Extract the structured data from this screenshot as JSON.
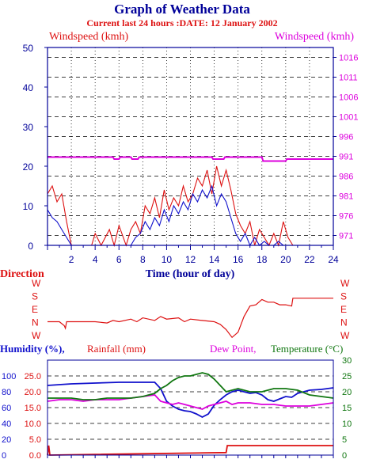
{
  "header": {
    "title": "Graph of Weather Data",
    "subtitle": "Current last 24 hours :DATE: 12 January 2002"
  },
  "colors": {
    "red": "#dd1111",
    "blue": "#1111cc",
    "magenta": "#dd00dd",
    "green": "#117711",
    "axis": "#000099",
    "grid": "#000000"
  },
  "chart_data": [
    {
      "type": "line",
      "name": "wind",
      "left_axis_label": "Windspeed (kmh)",
      "right_axis_label": "Windspeed (kmh)",
      "xlabel": "Time (hour of day)",
      "xlim": [
        0,
        24
      ],
      "x_ticks": [
        "2",
        "4",
        "6",
        "8",
        "10",
        "12",
        "14",
        "16",
        "18",
        "20",
        "22",
        "24"
      ],
      "ylim_left": [
        0,
        50
      ],
      "y_ticks_left": [
        "0",
        "10",
        "20",
        "30",
        "40",
        "50"
      ],
      "ylim_right": [
        968.5,
        1018.5
      ],
      "y_ticks_right": [
        "971",
        "976",
        "981",
        "986",
        "991",
        "996",
        "1001",
        "1006",
        "1011",
        "1016"
      ],
      "grid": "dashed horizontal",
      "series": [
        {
          "color": "red",
          "x": [
            0,
            0.4,
            0.8,
            1.2,
            1.6,
            2.0,
            3.7,
            4.0,
            4.5,
            5.2,
            5.6,
            6.0,
            6.6,
            7.0,
            7.4,
            7.8,
            8.2,
            8.6,
            9.0,
            9.4,
            9.8,
            10.2,
            10.6,
            11.0,
            11.4,
            11.8,
            12.2,
            12.6,
            13.0,
            13.4,
            13.8,
            14.2,
            14.6,
            15.0,
            15.4,
            15.8,
            16.2,
            16.6,
            17.0,
            17.4,
            17.8,
            18.2,
            18.6,
            19.0,
            19.4,
            19.8,
            20.2,
            20.6
          ],
          "values": [
            13,
            15,
            11,
            13,
            6,
            0,
            0,
            3,
            0,
            4,
            0,
            5,
            0,
            4,
            6,
            3,
            10,
            8,
            12,
            7,
            14,
            9,
            12,
            10,
            15,
            11,
            13,
            17,
            15,
            19,
            13,
            20,
            15,
            19,
            14,
            8,
            5,
            3,
            6,
            0,
            4,
            2,
            0,
            3,
            0,
            6,
            2,
            0
          ]
        },
        {
          "color": "blue",
          "x": [
            0,
            0.4,
            0.8,
            1.2,
            1.6,
            2.0,
            7.0,
            7.4,
            7.8,
            8.2,
            8.6,
            9.0,
            9.4,
            9.8,
            10.2,
            10.6,
            11.0,
            11.4,
            11.8,
            12.2,
            12.6,
            13.0,
            13.4,
            13.8,
            14.2,
            14.6,
            15.0,
            15.4,
            15.8,
            16.2,
            16.6,
            17.0,
            17.4,
            17.8,
            18.2,
            18.6,
            19.0,
            19.4,
            19.8,
            20.2
          ],
          "values": [
            9,
            7,
            6,
            4,
            2,
            0,
            0,
            2,
            3,
            6,
            4,
            7,
            5,
            9,
            6,
            10,
            8,
            11,
            9,
            13,
            11,
            14,
            12,
            15,
            10,
            13,
            11,
            7,
            3,
            1,
            3,
            0,
            2,
            0,
            1,
            0,
            0,
            1,
            0,
            0
          ]
        },
        {
          "color": "magenta",
          "axis": "right",
          "x": [
            0,
            5.5,
            5.6,
            6.0,
            6.1,
            7.0,
            7.1,
            7.6,
            7.7,
            13.8,
            13.9,
            14.8,
            14.9,
            18.0,
            18.1,
            20.0,
            20.1,
            24.0
          ],
          "values": [
            990.8,
            990.8,
            990.3,
            990.3,
            990.8,
            990.8,
            990.3,
            990.3,
            990.8,
            990.8,
            990.3,
            990.3,
            990.8,
            990.8,
            989.8,
            989.8,
            990.3,
            990.3
          ]
        }
      ]
    },
    {
      "type": "line",
      "name": "direction",
      "left_axis_label": "Direction",
      "categories_y": [
        "N",
        "E",
        "S",
        "W"
      ],
      "left_tick_labels": [
        "W",
        "S",
        "E",
        "N",
        "W"
      ],
      "right_tick_labels": [
        "W",
        "S",
        "E",
        "N",
        "W"
      ],
      "series": [
        {
          "color": "red",
          "x": [
            0,
            1.0,
            1.4,
            1.5,
            1.6,
            2.0,
            4.0,
            5.0,
            5.5,
            6.0,
            7.0,
            7.5,
            8.0,
            9.0,
            9.5,
            10.0,
            11.0,
            11.5,
            12.0,
            13.0,
            14.0,
            14.5,
            15.0,
            15.5,
            16.0,
            16.5,
            17.0,
            17.5,
            18.0,
            18.5,
            19.0,
            19.5,
            20.0,
            20.5,
            20.6,
            24.0
          ],
          "values": [
            0.0,
            0.0,
            -0.3,
            -0.5,
            0.0,
            0.0,
            0.0,
            -0.1,
            0.1,
            0.0,
            0.2,
            0.0,
            0.3,
            0.1,
            0.4,
            0.2,
            0.3,
            0.0,
            0.2,
            0.1,
            0.0,
            -0.2,
            -0.6,
            -1.2,
            -0.8,
            0.4,
            1.2,
            1.3,
            1.7,
            1.5,
            1.5,
            1.3,
            1.3,
            1.2,
            1.8,
            1.8
          ]
        }
      ]
    },
    {
      "type": "line",
      "name": "humidity-rain-dew-temp",
      "labels": {
        "humidity": "Humidity (%),",
        "rainfall": "Rainfall (mm)",
        "dewpoint": "Dew Point,",
        "temperature": "Temperature (°C)"
      },
      "humidity_ticks": [
        "100",
        "80",
        "60",
        "40",
        "20",
        "0"
      ],
      "rain_ticks": [
        "25.0",
        "20.0",
        "15.0",
        "10.0",
        "5.0",
        "0.0"
      ],
      "temp_ticks": [
        "30",
        "25",
        "20",
        "15",
        "10",
        "5",
        "0"
      ],
      "xlim": [
        0,
        24
      ],
      "series": [
        {
          "name": "humidity",
          "color": "blue",
          "scale": "humidity",
          "x": [
            0,
            1,
            2,
            4,
            6,
            8,
            9,
            9.5,
            10,
            10.5,
            11,
            11.5,
            12,
            12.5,
            13,
            13.5,
            14,
            14.5,
            15,
            15.5,
            16,
            16.5,
            17,
            17.5,
            18,
            18.5,
            19,
            19.5,
            20,
            20.5,
            21,
            22,
            23,
            24
          ],
          "values": [
            88,
            89,
            90,
            91,
            92,
            92,
            92,
            84,
            68,
            62,
            58,
            56,
            55,
            52,
            48,
            52,
            63,
            70,
            76,
            80,
            82,
            80,
            78,
            79,
            76,
            70,
            68,
            71,
            74,
            73,
            78,
            82,
            83,
            85
          ]
        },
        {
          "name": "rainfall",
          "color": "red",
          "scale": "rain",
          "x": [
            0,
            0.1,
            0.2,
            15.0,
            15.1,
            24.0
          ],
          "values": [
            0.0,
            3.0,
            0.0,
            0.8,
            3.0,
            3.0
          ]
        },
        {
          "name": "dewpoint",
          "color": "magenta",
          "scale": "temp",
          "x": [
            0,
            1,
            2,
            3,
            4,
            5,
            6,
            7,
            8,
            9,
            9.5,
            10,
            10.5,
            11,
            11.5,
            12,
            12.5,
            13,
            13.5,
            14,
            14.5,
            15,
            15.5,
            16,
            17,
            18,
            19,
            20,
            21,
            22,
            23,
            24
          ],
          "values": [
            17.0,
            17.5,
            17.5,
            17.0,
            17.5,
            17.5,
            17.5,
            18.0,
            18.5,
            19.0,
            17.0,
            16.5,
            16.0,
            16.5,
            16.0,
            15.5,
            15.0,
            14.5,
            15.5,
            16.0,
            16.5,
            17.0,
            16.0,
            16.5,
            16.5,
            16.0,
            16.0,
            15.5,
            15.5,
            15.5,
            16.0,
            16.5
          ]
        },
        {
          "name": "temperature",
          "color": "green",
          "scale": "temp",
          "x": [
            0,
            1,
            2,
            3,
            4,
            5,
            6,
            7,
            8,
            9,
            9.5,
            10,
            10.5,
            11,
            11.5,
            12,
            12.5,
            13,
            13.5,
            14,
            14.5,
            15,
            15.5,
            16,
            17,
            18,
            19,
            20,
            21,
            22,
            23,
            24
          ],
          "values": [
            18.0,
            18.0,
            18.0,
            17.5,
            17.5,
            18.0,
            18.0,
            18.0,
            18.5,
            19.5,
            21.0,
            22.0,
            23.5,
            24.5,
            25.0,
            25.0,
            25.5,
            26.0,
            25.5,
            24.0,
            22.0,
            20.0,
            20.5,
            21.0,
            20.0,
            20.0,
            21.0,
            21.0,
            20.5,
            19.0,
            18.5,
            18.0
          ]
        }
      ]
    }
  ]
}
